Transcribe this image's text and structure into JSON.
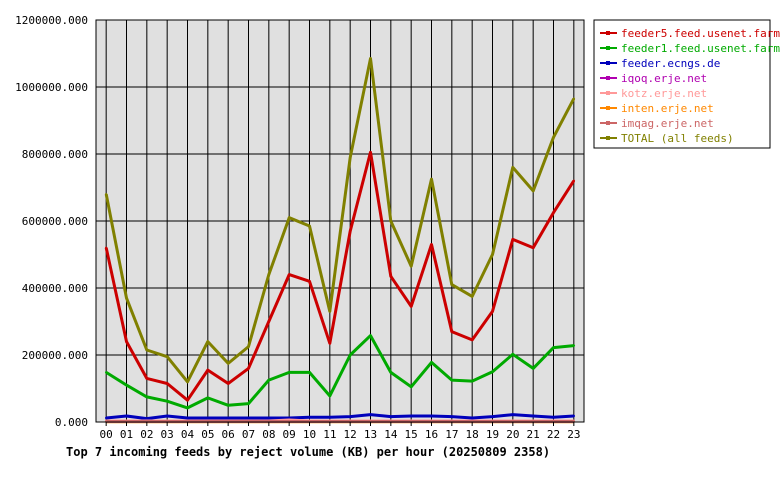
{
  "chart_data": {
    "type": "line",
    "title": "Top 7 incoming feeds by reject volume (KB) per hour (20250809 2358)",
    "categories": [
      "00",
      "01",
      "02",
      "03",
      "04",
      "05",
      "06",
      "07",
      "08",
      "09",
      "10",
      "11",
      "12",
      "13",
      "14",
      "15",
      "16",
      "17",
      "18",
      "19",
      "20",
      "21",
      "22",
      "23"
    ],
    "y_ticks": [
      "0.000",
      "200000.000",
      "400000.000",
      "600000.000",
      "800000.000",
      "1000000.000",
      "1200000.000"
    ],
    "ylim": [
      0,
      1200000
    ],
    "grid": true,
    "legend_position": "right",
    "series": [
      {
        "name": "feeder5.feed.usenet.farm",
        "color": "#cc0000",
        "values": [
          520000,
          240000,
          130000,
          115000,
          65000,
          155000,
          115000,
          160000,
          300000,
          440000,
          420000,
          235000,
          570000,
          805000,
          435000,
          345000,
          530000,
          270000,
          245000,
          330000,
          545000,
          520000,
          625000,
          720000
        ]
      },
      {
        "name": "feeder1.feed.usenet.farm",
        "color": "#00aa00",
        "values": [
          148000,
          110000,
          75000,
          62000,
          42000,
          72000,
          50000,
          55000,
          125000,
          148000,
          148000,
          78000,
          200000,
          258000,
          148000,
          105000,
          178000,
          125000,
          122000,
          150000,
          202000,
          160000,
          222000,
          228000
        ]
      },
      {
        "name": "feeder.ecngs.de",
        "color": "#0000bb",
        "values": [
          12000,
          18000,
          10000,
          18000,
          12000,
          12000,
          12000,
          12000,
          12000,
          12000,
          14000,
          14000,
          16000,
          22000,
          16000,
          18000,
          18000,
          16000,
          12000,
          16000,
          22000,
          18000,
          14000,
          18000
        ]
      },
      {
        "name": "iqoq.erje.net",
        "color": "#b000b0",
        "values": [
          2000,
          2000,
          2000,
          2000,
          2000,
          2000,
          2000,
          2000,
          2000,
          3000,
          2000,
          2000,
          2000,
          2000,
          2000,
          2000,
          2000,
          2000,
          2000,
          2000,
          2000,
          2000,
          2000,
          2000
        ]
      },
      {
        "name": "kotz.erje.net",
        "color": "#ff9999",
        "values": [
          3000,
          3000,
          3000,
          3000,
          3000,
          3000,
          3000,
          3000,
          3000,
          6000,
          3000,
          3000,
          3000,
          3000,
          3000,
          3000,
          3000,
          3000,
          3000,
          3000,
          3000,
          3000,
          3000,
          3000
        ]
      },
      {
        "name": "inten.erje.net",
        "color": "#ff8800",
        "values": [
          1000,
          1000,
          1000,
          1000,
          1000,
          1000,
          1000,
          1000,
          1000,
          1000,
          1000,
          1000,
          1000,
          1000,
          1000,
          1000,
          1000,
          1000,
          1000,
          1000,
          1000,
          1000,
          1000,
          1000
        ]
      },
      {
        "name": "imqag.erje.net",
        "color": "#cc6666",
        "values": [
          1500,
          1500,
          1500,
          1500,
          1500,
          1500,
          1500,
          1500,
          1500,
          1500,
          1500,
          1500,
          1500,
          1500,
          1500,
          1500,
          1500,
          1500,
          1500,
          1500,
          1500,
          1500,
          1500,
          1500
        ]
      },
      {
        "name": "TOTAL (all feeds)",
        "color": "#808000",
        "values": [
          680000,
          370000,
          215000,
          195000,
          120000,
          240000,
          175000,
          225000,
          440000,
          610000,
          585000,
          330000,
          790000,
          1085000,
          600000,
          465000,
          725000,
          410000,
          375000,
          500000,
          760000,
          690000,
          850000,
          965000
        ]
      }
    ]
  }
}
